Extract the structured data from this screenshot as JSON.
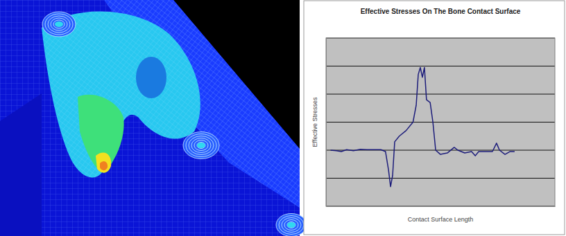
{
  "chart_data": {
    "type": "line",
    "title": "Effective Stresses On The Bone Contact Surface",
    "x_label": "Contact Surface Length",
    "y_label": "Effective Stresses",
    "x": [
      2,
      4.5,
      6.7,
      9,
      12,
      15,
      18,
      21,
      24,
      26,
      27.3,
      28.2,
      29.1,
      30,
      32,
      35,
      38,
      39.4,
      40.3,
      41.2,
      42.1,
      43,
      43.9,
      45.5,
      46.7,
      47.9,
      50,
      53,
      56,
      57.6,
      60.6,
      63.6,
      65.2,
      66.7,
      69.7,
      72.7,
      74.5,
      75.8,
      78.2,
      80.3,
      82.4
    ],
    "values": [
      2.0,
      1.98,
      1.95,
      2.02,
      1.98,
      2.03,
      2.02,
      2.02,
      2.02,
      1.95,
      1.3,
      0.7,
      1.1,
      2.3,
      2.5,
      2.7,
      3.0,
      3.6,
      4.7,
      4.95,
      4.6,
      4.95,
      3.8,
      3.7,
      3.0,
      2.0,
      1.85,
      1.9,
      2.1,
      2.0,
      1.9,
      1.95,
      1.8,
      1.95,
      1.95,
      1.95,
      2.25,
      2.0,
      1.85,
      1.95,
      1.95
    ],
    "xlim": [
      0,
      100
    ],
    "ylim": [
      0,
      6
    ],
    "yticks": [
      0,
      1,
      2,
      3,
      4,
      5,
      6
    ],
    "color": "#1c1c7a",
    "grid": true,
    "tick_labels": false
  }
}
